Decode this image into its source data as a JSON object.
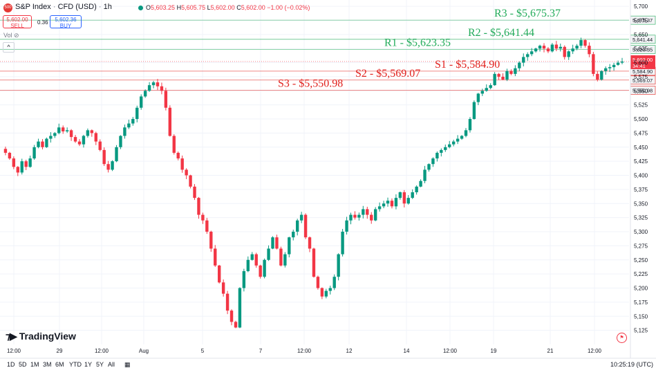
{
  "header": {
    "symbol_badge": "500",
    "symbol": "S&P Index",
    "sep1": "·",
    "instrument": "CFD (USD)",
    "sep2": "·",
    "interval": "1h",
    "ohlc": {
      "o_label": "O",
      "o": "5,603.25",
      "h_label": "H",
      "h": "5,605.75",
      "l_label": "L",
      "l": "5,602.00",
      "c_label": "C",
      "c": "5,602.00",
      "change": "−1.00 (−0.02%)"
    },
    "sell_price": "5,602.00",
    "sell_label": "SELL",
    "spread": "0.36",
    "buy_price": "5,602.36",
    "buy_label": "BUY",
    "vol_label": "Vol",
    "collapse_glyph": "^"
  },
  "branding": {
    "logo_text": "TradingView"
  },
  "bottom_bar": {
    "ranges": [
      "1D",
      "5D",
      "1M",
      "3M",
      "6M",
      "YTD",
      "1Y",
      "5Y",
      "All"
    ],
    "time": "10:25:19 (UTC)"
  },
  "colors": {
    "up": "#089981",
    "down": "#f23645",
    "resistance": "#22ab5a",
    "support": "#e0201c",
    "grid": "#f0f3fa",
    "axis_text": "#131722"
  },
  "chart_data": {
    "type": "candlestick",
    "title": "S&P Index · CFD (USD) · 1h",
    "ylim": [
      5100,
      5705
    ],
    "y_ticks": [
      5125,
      5150,
      5175,
      5200,
      5225,
      5250,
      5275,
      5300,
      5325,
      5350,
      5375,
      5400,
      5425,
      5450,
      5475,
      5500,
      5525,
      5550,
      5575,
      5600,
      5625,
      5650,
      5675,
      5700
    ],
    "x_tick_labels": [
      "12:00",
      "29",
      "12:00",
      "Aug",
      "5",
      "7",
      "12:00",
      "12",
      "14",
      "12:00",
      "19",
      "21",
      "12:00"
    ],
    "last_price": "5,602.00",
    "countdown": "34:41",
    "levels": [
      {
        "name": "R3",
        "value": 5675.37,
        "label": "R3 - $5,675.37",
        "axis_label": "5,675.37",
        "type": "resistance"
      },
      {
        "name": "R2",
        "value": 5641.44,
        "label": "R2 - $5,641.44",
        "axis_label": "5,641.44",
        "type": "resistance"
      },
      {
        "name": "R1",
        "value": 5623.35,
        "label": "R1 - $5,623.35",
        "axis_label": "5,623.35",
        "type": "resistance"
      },
      {
        "name": "S1",
        "value": 5584.9,
        "label": "S1 - $5,584.90",
        "axis_label": "5,584.90",
        "type": "support"
      },
      {
        "name": "S2",
        "value": 5569.07,
        "label": "S2 - $5,569.07",
        "axis_label": "5,569.07",
        "type": "support"
      },
      {
        "name": "S3",
        "value": 5550.98,
        "label": "S3 - $5,550.98",
        "axis_label": "5,550.98",
        "type": "support"
      }
    ],
    "price_path": [
      5447,
      5440,
      5430,
      5415,
      5405,
      5425,
      5415,
      5430,
      5450,
      5460,
      5450,
      5465,
      5470,
      5475,
      5485,
      5478,
      5480,
      5468,
      5460,
      5455,
      5470,
      5480,
      5475,
      5460,
      5445,
      5420,
      5410,
      5425,
      5450,
      5470,
      5485,
      5492,
      5500,
      5520,
      5540,
      5550,
      5560,
      5565,
      5558,
      5550,
      5520,
      5470,
      5440,
      5430,
      5410,
      5400,
      5380,
      5360,
      5330,
      5320,
      5300,
      5270,
      5240,
      5210,
      5190,
      5160,
      5140,
      5130,
      5200,
      5230,
      5250,
      5260,
      5240,
      5220,
      5250,
      5270,
      5290,
      5270,
      5240,
      5260,
      5290,
      5300,
      5320,
      5330,
      5290,
      5270,
      5220,
      5200,
      5185,
      5195,
      5200,
      5220,
      5260,
      5300,
      5320,
      5330,
      5325,
      5330,
      5340,
      5330,
      5320,
      5340,
      5345,
      5350,
      5355,
      5345,
      5360,
      5370,
      5350,
      5360,
      5370,
      5380,
      5390,
      5410,
      5420,
      5430,
      5440,
      5445,
      5450,
      5455,
      5460,
      5465,
      5470,
      5480,
      5500,
      5530,
      5545,
      5550,
      5555,
      5560,
      5580,
      5575,
      5570,
      5585,
      5580,
      5590,
      5600,
      5610,
      5615,
      5620,
      5625,
      5630,
      5625,
      5620,
      5632,
      5625,
      5628,
      5610,
      5620,
      5625,
      5630,
      5640,
      5630,
      5615,
      5580,
      5570,
      5585,
      5590,
      5592,
      5596,
      5600,
      5602
    ]
  }
}
